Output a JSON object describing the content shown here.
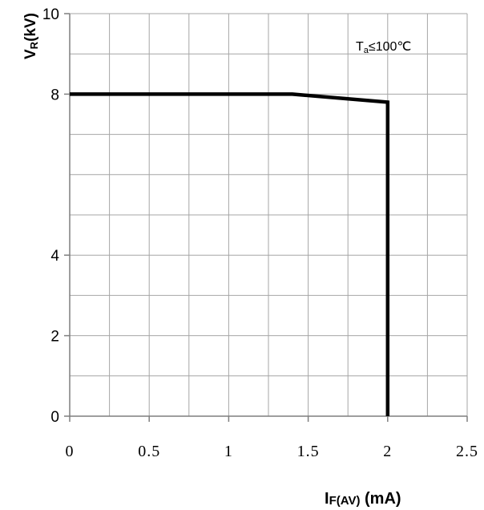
{
  "chart_data": {
    "type": "line",
    "xlabel_main": "I",
    "xlabel_sub": "F(AV)",
    "xlabel_unit": " (mA)",
    "ylabel_main": "V",
    "ylabel_sub": "R",
    "ylabel_unit": "(kV)",
    "annotation_main": "T",
    "annotation_sub": "a",
    "annotation_rest": "≤100℃",
    "xlim": [
      0,
      2.5
    ],
    "ylim": [
      0,
      10
    ],
    "x_ticks": [
      {
        "value": 0,
        "label": "0"
      },
      {
        "value": 0.5,
        "label": "0.5"
      },
      {
        "value": 1,
        "label": "1"
      },
      {
        "value": 1.5,
        "label": "1.5"
      },
      {
        "value": 2,
        "label": "2"
      },
      {
        "value": 2.5,
        "label": "2.5"
      }
    ],
    "y_ticks": [
      {
        "value": 0,
        "label": "0"
      },
      {
        "value": 2,
        "label": "2"
      },
      {
        "value": 4,
        "label": "4"
      },
      {
        "value": 8,
        "label": "8"
      },
      {
        "value": 10,
        "label": "10"
      }
    ],
    "grid": true,
    "grid_x_step": 0.25,
    "grid_y_step": 1,
    "series": [
      {
        "x": [
          0,
          1.4,
          2.0,
          2.0
        ],
        "y": [
          8.0,
          8.0,
          7.8,
          0.0
        ],
        "color": "#000000"
      }
    ]
  }
}
